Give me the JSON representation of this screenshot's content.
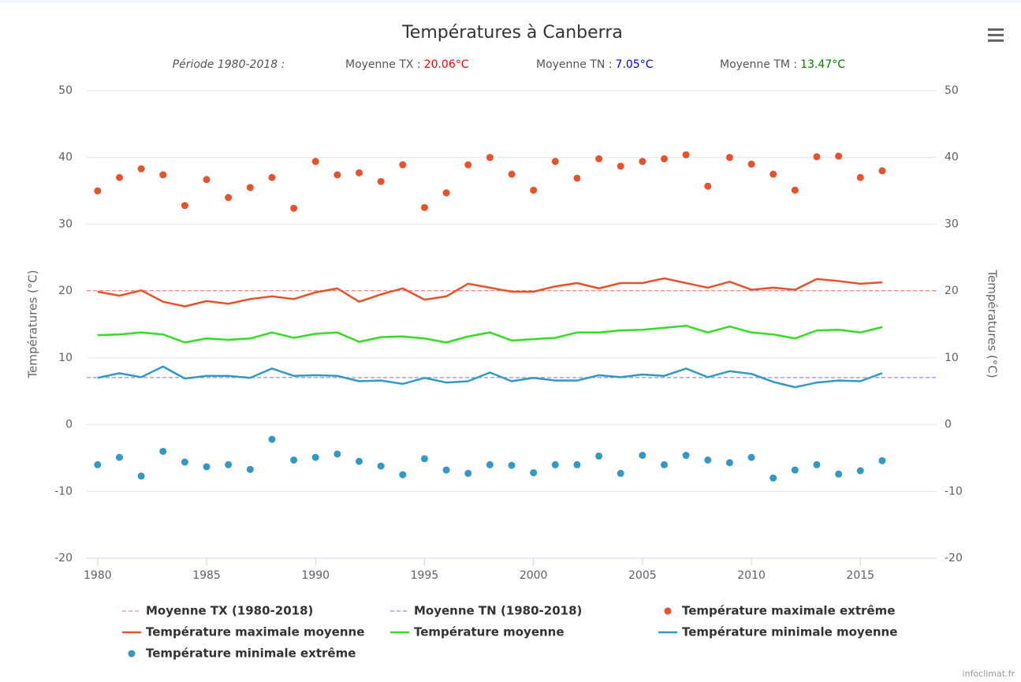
{
  "chart_data": {
    "type": "line",
    "title": "Températures à Canberra",
    "period": "Période 1980-2018 :",
    "stats": [
      {
        "label": "Moyenne TX :",
        "value": 20.06,
        "value_label": "20.06°C",
        "color": "#ff0000"
      },
      {
        "label": "Moyenne TN :",
        "value": 7.05,
        "value_label": "7.05°C",
        "color": "#0000ff"
      },
      {
        "label": "Moyenne TM :",
        "value": 13.47,
        "value_label": "13.47°C",
        "color": "#008000"
      }
    ],
    "ylabel": "Températures (°C)",
    "y2label": "Températures (°C)",
    "x": [
      1980,
      1981,
      1982,
      1983,
      1984,
      1985,
      1986,
      1987,
      1988,
      1989,
      1990,
      1991,
      1992,
      1993,
      1994,
      1995,
      1996,
      1997,
      1998,
      1999,
      2000,
      2001,
      2002,
      2003,
      2004,
      2005,
      2006,
      2007,
      2008,
      2009,
      2010,
      2011,
      2012,
      2013,
      2014,
      2015,
      2016
    ],
    "xlim": [
      1979.5,
      2018.5
    ],
    "xticks": [
      1980,
      1985,
      1990,
      1995,
      2000,
      2005,
      2010,
      2015
    ],
    "ylim": [
      -20,
      50
    ],
    "yticks": [
      -20,
      -10,
      0,
      10,
      20,
      30,
      40,
      50
    ],
    "y2lim": [
      -20,
      50
    ],
    "y2ticks": [
      -20,
      -10,
      0,
      10,
      20,
      30,
      40,
      50
    ],
    "grid": true,
    "series": [
      {
        "name": "Moyenne TX (1980-2018)",
        "style": "dashed",
        "color": "#f08a8a",
        "value": 20.06
      },
      {
        "name": "Moyenne TN (1980-2018)",
        "style": "dashed",
        "color": "#8c8cf0",
        "value": 7.05
      },
      {
        "name": "Température maximale extrême",
        "style": "dots",
        "color": "#e6522c",
        "values": [
          35.0,
          37.0,
          38.3,
          37.4,
          32.8,
          36.7,
          34.0,
          35.5,
          37.0,
          32.4,
          39.4,
          37.4,
          37.7,
          36.4,
          38.9,
          32.5,
          34.7,
          38.9,
          40.0,
          37.5,
          35.1,
          39.4,
          36.9,
          39.8,
          38.7,
          39.4,
          39.8,
          40.4,
          35.7,
          40.0,
          39.0,
          37.5,
          35.1,
          40.1,
          40.2,
          37.0,
          38.0
        ]
      },
      {
        "name": "Température maximale moyenne",
        "style": "line",
        "color": "#e6522c",
        "values": [
          19.9,
          19.3,
          20.1,
          18.4,
          17.7,
          18.5,
          18.1,
          18.8,
          19.2,
          18.8,
          19.8,
          20.4,
          18.4,
          19.5,
          20.4,
          18.7,
          19.2,
          21.1,
          20.5,
          19.9,
          19.9,
          20.7,
          21.2,
          20.4,
          21.2,
          21.2,
          21.9,
          21.2,
          20.5,
          21.4,
          20.2,
          20.5,
          20.2,
          21.8,
          21.5,
          21.1,
          21.3
        ]
      },
      {
        "name": "Température moyenne",
        "style": "line",
        "color": "#33dd22",
        "values": [
          13.4,
          13.5,
          13.8,
          13.5,
          12.3,
          12.9,
          12.7,
          12.9,
          13.8,
          13.0,
          13.6,
          13.8,
          12.4,
          13.1,
          13.2,
          12.9,
          12.3,
          13.2,
          13.8,
          12.6,
          12.8,
          13.0,
          13.8,
          13.8,
          14.1,
          14.2,
          14.5,
          14.8,
          13.8,
          14.7,
          13.8,
          13.5,
          12.9,
          14.1,
          14.2,
          13.8,
          14.6
        ]
      },
      {
        "name": "Température minimale moyenne",
        "style": "line",
        "color": "#3399c4",
        "values": [
          7.0,
          7.7,
          7.1,
          8.7,
          6.9,
          7.3,
          7.3,
          7.0,
          8.4,
          7.3,
          7.4,
          7.3,
          6.5,
          6.6,
          6.1,
          7.0,
          6.3,
          6.5,
          7.8,
          6.5,
          7.0,
          6.6,
          6.6,
          7.4,
          7.1,
          7.5,
          7.3,
          8.4,
          7.1,
          8.0,
          7.6,
          6.4,
          5.6,
          6.3,
          6.6,
          6.5,
          7.7
        ]
      },
      {
        "name": "Température minimale extrême",
        "style": "dots",
        "color": "#3399c4",
        "values": [
          -6.0,
          -4.9,
          -7.7,
          -4.0,
          -5.6,
          -6.3,
          -6.0,
          -6.7,
          -2.2,
          -5.3,
          -4.9,
          -4.4,
          -5.5,
          -6.2,
          -7.5,
          -5.1,
          -6.8,
          -7.3,
          -6.0,
          -6.1,
          -7.2,
          -6.0,
          -6.0,
          -4.7,
          -7.3,
          -4.6,
          -6.0,
          -4.6,
          -5.3,
          -5.7,
          -4.9,
          -8.0,
          -6.8,
          -6.0,
          -7.4,
          -6.9,
          -5.4
        ]
      }
    ],
    "credits": "infoclimat.fr"
  }
}
